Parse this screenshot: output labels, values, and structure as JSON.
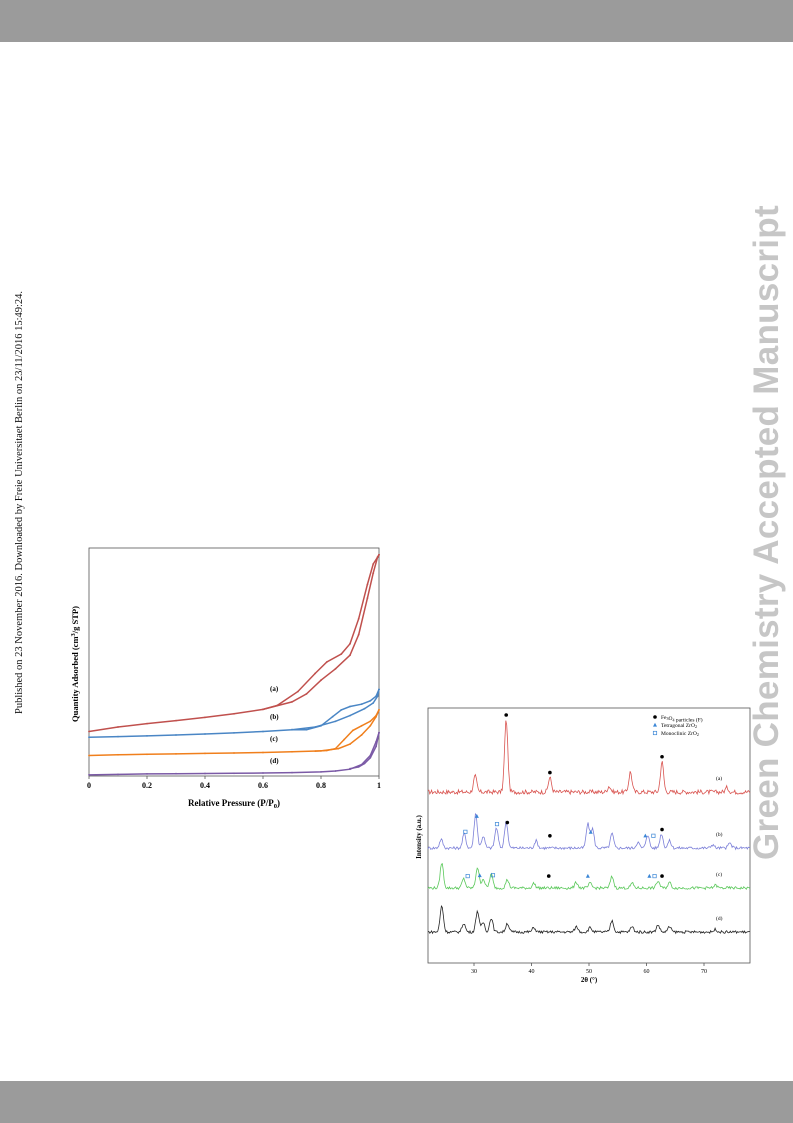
{
  "page": {
    "side_note": "Published on 23 November 2016. Downloaded by Freie Universitaet Berlin on 23/11/2016 15:49:24.",
    "watermark": "Green Chemistry Accepted Manuscript"
  },
  "colors": {
    "band": "#9b9b9b",
    "red": "#c0504d",
    "blue": "#4a86c5",
    "orange": "#f07f1c",
    "purple": "#7b5aa6",
    "xrd_red": "#d9534f",
    "xrd_blue": "#7b7fd8",
    "xrd_green": "#5ac85a",
    "xrd_black": "#222222",
    "marker_tetragonal": "#3a86d6",
    "marker_monoclinic": "#3a86d6"
  },
  "chart_data": [
    {
      "type": "line",
      "xlabel": "Relative Pressure (P/P",
      "xlabel_sub": "0",
      "xlabel_tail": ")",
      "ylabel": "Quantity Adsorbed (cm",
      "ylabel_sup": "3",
      "ylabel_tail": "/g STP)",
      "xlim": [
        0,
        1
      ],
      "ylim": [
        0,
        100
      ],
      "x_ticks": [
        "0",
        "0.2",
        "0.4",
        "0.6",
        "0.8",
        "1"
      ],
      "x_tick_values": [
        0,
        0.2,
        0.4,
        0.6,
        0.8,
        1
      ],
      "grid": false,
      "series": [
        {
          "name": "(a)",
          "adsorption": [
            [
              0.0,
              19.5
            ],
            [
              0.1,
              21.5
            ],
            [
              0.2,
              23
            ],
            [
              0.3,
              24.3
            ],
            [
              0.4,
              25.7
            ],
            [
              0.5,
              27.3
            ],
            [
              0.6,
              29.2
            ],
            [
              0.7,
              32.5
            ],
            [
              0.75,
              36
            ],
            [
              0.8,
              42
            ],
            [
              0.85,
              47
            ],
            [
              0.9,
              53
            ],
            [
              0.93,
              62
            ],
            [
              0.96,
              78
            ],
            [
              0.98,
              89
            ],
            [
              0.995,
              96
            ],
            [
              1.0,
              97
            ]
          ],
          "desorption": [
            [
              1.0,
              97
            ],
            [
              0.995,
              96
            ],
            [
              0.98,
              93
            ],
            [
              0.96,
              84
            ],
            [
              0.93,
              69
            ],
            [
              0.9,
              58
            ],
            [
              0.87,
              53.5
            ],
            [
              0.82,
              50
            ],
            [
              0.78,
              45
            ],
            [
              0.72,
              37
            ],
            [
              0.65,
              31
            ],
            [
              0.6,
              29.2
            ]
          ]
        },
        {
          "name": "(b)",
          "adsorption": [
            [
              0.0,
              17
            ],
            [
              0.1,
              17.3
            ],
            [
              0.2,
              17.6
            ],
            [
              0.3,
              18
            ],
            [
              0.4,
              18.4
            ],
            [
              0.5,
              18.9
            ],
            [
              0.6,
              19.5
            ],
            [
              0.7,
              20.3
            ],
            [
              0.78,
              21.5
            ],
            [
              0.85,
              24
            ],
            [
              0.9,
              26.5
            ],
            [
              0.95,
              29.5
            ],
            [
              0.98,
              32
            ],
            [
              0.995,
              35
            ],
            [
              1.0,
              38
            ]
          ],
          "desorption": [
            [
              1.0,
              38
            ],
            [
              0.99,
              35
            ],
            [
              0.97,
              33
            ],
            [
              0.94,
              31.5
            ],
            [
              0.9,
              30.5
            ],
            [
              0.87,
              29
            ],
            [
              0.84,
              26
            ],
            [
              0.8,
              22
            ],
            [
              0.75,
              20.3
            ],
            [
              0.7,
              20.3
            ]
          ]
        },
        {
          "name": "(c)",
          "adsorption": [
            [
              0.0,
              9
            ],
            [
              0.1,
              9.3
            ],
            [
              0.2,
              9.5
            ],
            [
              0.3,
              9.7
            ],
            [
              0.4,
              9.9
            ],
            [
              0.5,
              10.1
            ],
            [
              0.6,
              10.3
            ],
            [
              0.7,
              10.6
            ],
            [
              0.8,
              11
            ],
            [
              0.86,
              12
            ],
            [
              0.9,
              14
            ],
            [
              0.94,
              18
            ],
            [
              0.97,
              22
            ],
            [
              0.99,
              26
            ],
            [
              1.0,
              29
            ]
          ],
          "desorption": [
            [
              1.0,
              29
            ],
            [
              0.99,
              26.5
            ],
            [
              0.97,
              24
            ],
            [
              0.94,
              22
            ],
            [
              0.91,
              20
            ],
            [
              0.88,
              16
            ],
            [
              0.85,
              12
            ],
            [
              0.82,
              11.2
            ],
            [
              0.78,
              10.9
            ]
          ]
        },
        {
          "name": "(d)",
          "adsorption": [
            [
              0.0,
              0.5
            ],
            [
              0.1,
              0.7
            ],
            [
              0.2,
              0.9
            ],
            [
              0.3,
              1.0
            ],
            [
              0.4,
              1.1
            ],
            [
              0.5,
              1.2
            ],
            [
              0.6,
              1.3
            ],
            [
              0.7,
              1.5
            ],
            [
              0.8,
              1.8
            ],
            [
              0.85,
              2.2
            ],
            [
              0.9,
              3
            ],
            [
              0.94,
              5
            ],
            [
              0.97,
              9
            ],
            [
              0.99,
              15
            ],
            [
              1.0,
              19
            ]
          ],
          "desorption": [
            [
              1.0,
              19
            ],
            [
              0.99,
              13
            ],
            [
              0.97,
              8
            ],
            [
              0.95,
              5.5
            ],
            [
              0.93,
              4
            ],
            [
              0.9,
              3.2
            ]
          ]
        }
      ]
    },
    {
      "type": "line",
      "xlabel": "2θ (°)",
      "ylabel": "Intensity (a.u.)",
      "xlim": [
        22,
        78
      ],
      "x_ticks": [
        "30",
        "40",
        "50",
        "60",
        "70"
      ],
      "x_tick_values": [
        30,
        40,
        50,
        60,
        70
      ],
      "legend": {
        "placement": "top-right",
        "items": [
          {
            "marker": "filled-circle",
            "label": "Fe",
            "sub1": "3",
            "mid": "O",
            "sub2": "4",
            "tail": " particles (F)"
          },
          {
            "marker": "triangle",
            "label": "Tetragonal ZrO",
            "sub1": "2"
          },
          {
            "marker": "open-square",
            "label": "Monoclinic ZrO",
            "sub1": "2"
          }
        ]
      },
      "series": [
        {
          "name": "(a)",
          "peaks": [
            [
              30.2,
              0.22
            ],
            [
              35.6,
              1.0
            ],
            [
              43.2,
              0.2
            ],
            [
              53.5,
              0.08
            ],
            [
              57.2,
              0.28
            ],
            [
              62.7,
              0.42
            ],
            [
              74,
              0.06
            ]
          ],
          "markers": [
            {
              "x": 35.6,
              "type": "fe"
            },
            {
              "x": 43.2,
              "type": "fe"
            },
            {
              "x": 62.7,
              "type": "fe"
            }
          ]
        },
        {
          "name": "(b)",
          "peaks": [
            [
              24.3,
              0.18
            ],
            [
              28.3,
              0.3
            ],
            [
              30.3,
              0.72
            ],
            [
              31.6,
              0.25
            ],
            [
              33.9,
              0.42
            ],
            [
              35.6,
              0.55
            ],
            [
              40.8,
              0.15
            ],
            [
              49.8,
              0.5
            ],
            [
              50.6,
              0.4
            ],
            [
              54.0,
              0.3
            ],
            [
              58.5,
              0.12
            ],
            [
              60.2,
              0.28
            ],
            [
              62.6,
              0.3
            ],
            [
              64.0,
              0.15
            ],
            [
              71.5,
              0.07
            ],
            [
              74.5,
              0.1
            ]
          ],
          "markers": [
            {
              "x": 28.5,
              "type": "mono"
            },
            {
              "x": 30.5,
              "type": "tet"
            },
            {
              "x": 34.0,
              "type": "mono"
            },
            {
              "x": 35.8,
              "type": "fe"
            },
            {
              "x": 43.2,
              "type": "fe"
            },
            {
              "x": 50.3,
              "type": "tet"
            },
            {
              "x": 59.8,
              "type": "tet"
            },
            {
              "x": 61.2,
              "type": "mono"
            },
            {
              "x": 62.7,
              "type": "fe"
            }
          ]
        },
        {
          "name": "(c)",
          "peaks": [
            [
              24.4,
              0.55
            ],
            [
              28.2,
              0.2
            ],
            [
              30.6,
              0.45
            ],
            [
              31.6,
              0.2
            ],
            [
              33.0,
              0.3
            ],
            [
              35.8,
              0.18
            ],
            [
              40.4,
              0.1
            ],
            [
              47.8,
              0.12
            ],
            [
              50.2,
              0.1
            ],
            [
              54.0,
              0.25
            ],
            [
              57.5,
              0.1
            ],
            [
              62.0,
              0.15
            ],
            [
              64.0,
              0.12
            ],
            [
              72.0,
              0.06
            ]
          ],
          "markers": [
            {
              "x": 28.9,
              "type": "mono"
            },
            {
              "x": 31.0,
              "type": "tet"
            },
            {
              "x": 33.3,
              "type": "mono"
            },
            {
              "x": 43.0,
              "type": "fe"
            },
            {
              "x": 49.8,
              "type": "tet"
            },
            {
              "x": 60.5,
              "type": "tet"
            },
            {
              "x": 61.4,
              "type": "mono"
            },
            {
              "x": 62.7,
              "type": "fe"
            }
          ]
        },
        {
          "name": "(d)",
          "peaks": [
            [
              24.4,
              0.6
            ],
            [
              28.2,
              0.2
            ],
            [
              30.6,
              0.48
            ],
            [
              31.6,
              0.22
            ],
            [
              33.0,
              0.32
            ],
            [
              35.8,
              0.2
            ],
            [
              40.4,
              0.1
            ],
            [
              47.8,
              0.12
            ],
            [
              50.2,
              0.1
            ],
            [
              54.0,
              0.26
            ],
            [
              57.5,
              0.12
            ],
            [
              62.0,
              0.16
            ],
            [
              64.0,
              0.12
            ],
            [
              72.0,
              0.06
            ]
          ],
          "markers": []
        }
      ]
    }
  ]
}
